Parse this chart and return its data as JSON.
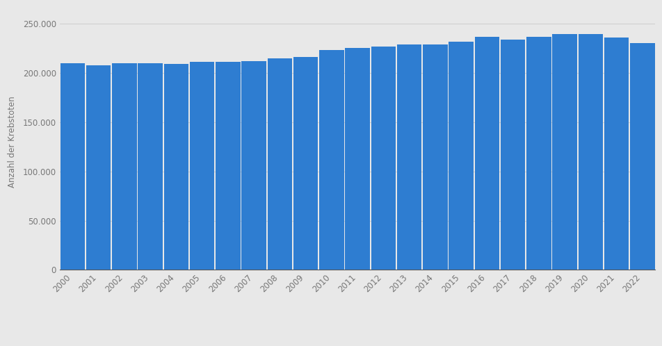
{
  "years": [
    2000,
    2001,
    2002,
    2003,
    2004,
    2005,
    2006,
    2007,
    2008,
    2009,
    2010,
    2011,
    2012,
    2013,
    2014,
    2015,
    2016,
    2017,
    2018,
    2019,
    2020,
    2021,
    2022
  ],
  "values": [
    210000,
    207500,
    210000,
    209500,
    209000,
    211000,
    211000,
    212000,
    215000,
    216500,
    223500,
    225500,
    226500,
    229000,
    229000,
    231500,
    237000,
    234000,
    237000,
    239500,
    239500,
    236000,
    230000
  ],
  "bar_color": "#2e7dd1",
  "ylabel": "Anzahl der Krebstoten",
  "background_color": "#e8e8e8",
  "plot_bg_color": "#e8e8e8",
  "ylim": [
    0,
    260000
  ],
  "yticks": [
    0,
    50000,
    100000,
    150000,
    200000,
    250000
  ],
  "grid_color": "#d0d0d0",
  "figsize": [
    9.52,
    4.98
  ],
  "dpi": 100
}
